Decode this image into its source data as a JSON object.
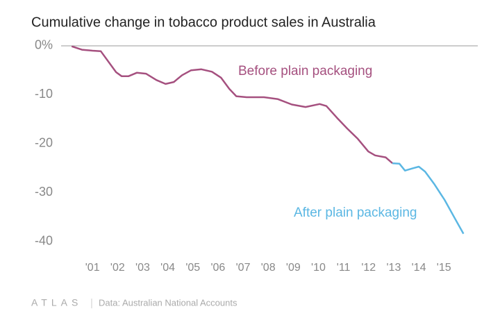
{
  "chart_data": {
    "type": "line",
    "title": "Cumulative change in tobacco product sales in Australia",
    "source": "Data: Australian National Accounts",
    "logo": "ATLAS",
    "xlim": [
      1999.75,
      2016.35
    ],
    "xticks": [
      {
        "value": 2001,
        "label": "'01"
      },
      {
        "value": 2002,
        "label": "'02"
      },
      {
        "value": 2003,
        "label": "'03"
      },
      {
        "value": 2004,
        "label": "'04"
      },
      {
        "value": 2005,
        "label": "'05"
      },
      {
        "value": 2006,
        "label": "'06"
      },
      {
        "value": 2007,
        "label": "'07"
      },
      {
        "value": 2008,
        "label": "'08"
      },
      {
        "value": 2009,
        "label": "'09"
      },
      {
        "value": 2010,
        "label": "'10"
      },
      {
        "value": 2011,
        "label": "'11"
      },
      {
        "value": 2012,
        "label": "'12"
      },
      {
        "value": 2013,
        "label": "'13"
      },
      {
        "value": 2014,
        "label": "'14"
      },
      {
        "value": 2015,
        "label": "'15"
      }
    ],
    "ylim": [
      -43,
      1.5
    ],
    "yticks": [
      {
        "value": 0,
        "label": "0%"
      },
      -10,
      -20,
      -30,
      -40
    ],
    "series": [
      {
        "name": "Before plain packaging",
        "color": "#a5507f",
        "x": [
          2000.17,
          2000.58,
          2001.0,
          2001.33,
          2001.94,
          2002.16,
          2002.44,
          2002.77,
          2003.13,
          2003.55,
          2003.91,
          2004.24,
          2004.57,
          2004.93,
          2005.34,
          2005.76,
          2006.12,
          2006.45,
          2006.73,
          2007.14,
          2007.83,
          2008.39,
          2008.94,
          2009.49,
          2010.05,
          2010.32,
          2010.74,
          2011.15,
          2011.57,
          2011.99,
          2012.26,
          2012.68,
          2012.95
        ],
        "values": [
          -0.1,
          -0.8,
          -1.0,
          -1.1,
          -5.4,
          -6.2,
          -6.2,
          -5.5,
          -5.7,
          -7.0,
          -7.8,
          -7.4,
          -6.0,
          -5.0,
          -4.8,
          -5.3,
          -6.5,
          -8.8,
          -10.3,
          -10.5,
          -10.5,
          -10.9,
          -12.0,
          -12.5,
          -11.9,
          -12.3,
          -14.7,
          -16.9,
          -19.0,
          -21.6,
          -22.4,
          -22.8,
          -24.0
        ]
      },
      {
        "name": "After plain packaging",
        "color": "#5bb7e3",
        "x": [
          2012.95,
          2013.23,
          2013.45,
          2013.78,
          2014.0,
          2014.25,
          2014.61,
          2015.03,
          2015.44,
          2015.78
        ],
        "values": [
          -24.0,
          -24.1,
          -25.5,
          -25.0,
          -24.7,
          -25.7,
          -28.2,
          -31.5,
          -35.3,
          -38.4
        ]
      }
    ]
  }
}
